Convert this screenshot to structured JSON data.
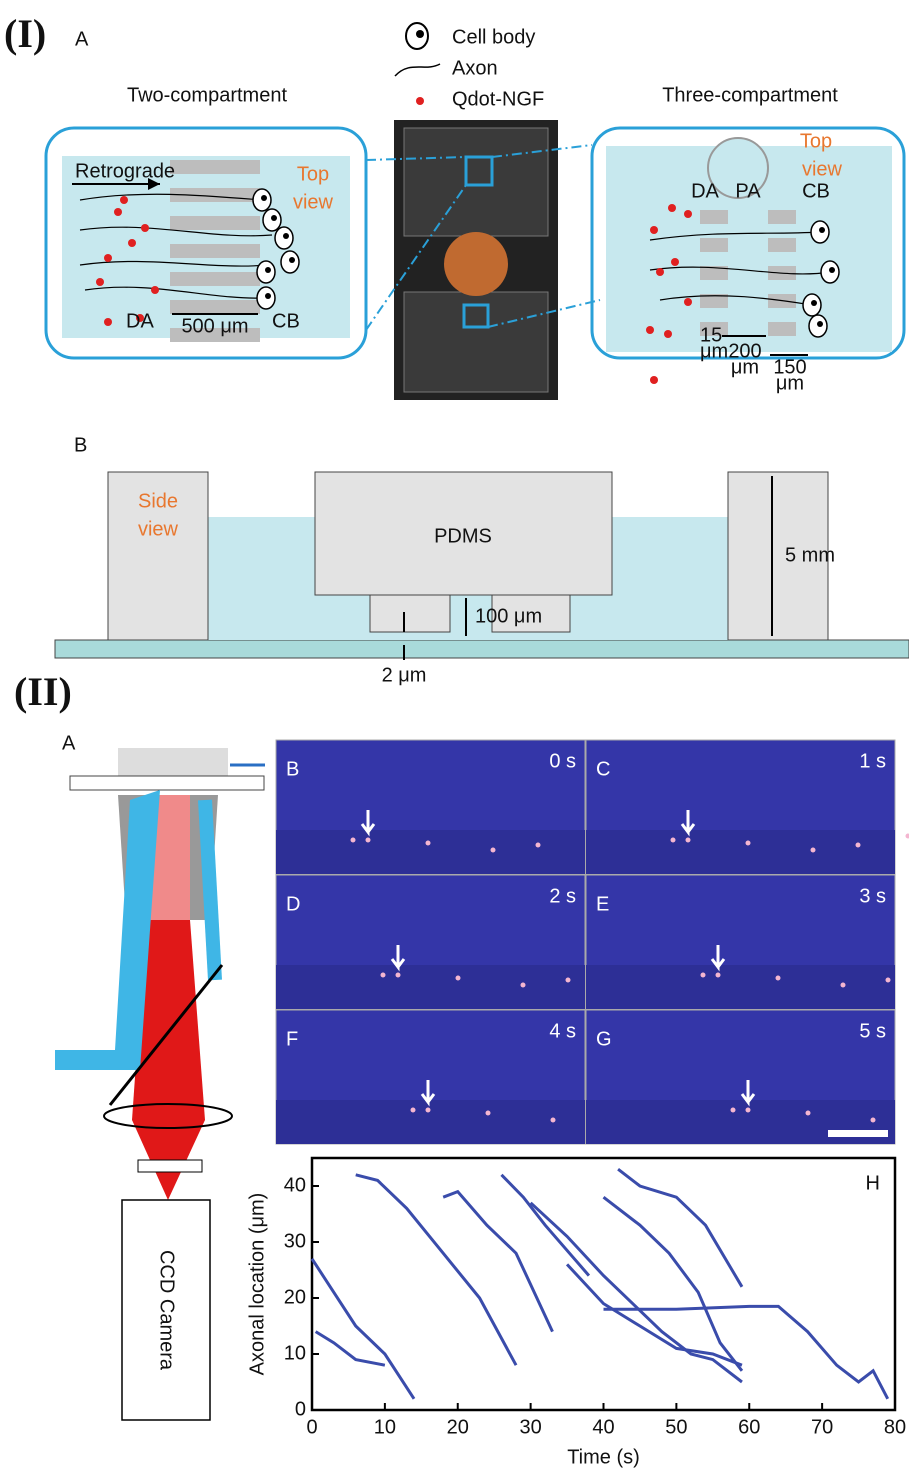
{
  "part1": {
    "label": "(I)",
    "panel_a": {
      "label": "A",
      "legend": [
        "Cell body",
        "Axon",
        "Qdot-NGF"
      ],
      "two_compartment": {
        "title": "Two-compartment",
        "direction": "Retrograde",
        "view": [
          "Top",
          "view"
        ],
        "left": "DA",
        "right": "CB",
        "width": "500 μm"
      },
      "three_compartment": {
        "title": "Three-compartment",
        "view": [
          "Top",
          "view"
        ],
        "left": "DA",
        "middle": "PA",
        "right": "CB",
        "gap": [
          "15",
          "μm"
        ],
        "spacing": [
          "200",
          "μm"
        ],
        "channel": [
          "150",
          "μm"
        ]
      }
    },
    "panel_b": {
      "label": "B",
      "view": [
        "Side",
        "view"
      ],
      "material": "PDMS",
      "height": "5 mm",
      "channel_height": "100 μm",
      "gap": "2 μm"
    }
  },
  "part2": {
    "label": "(II)",
    "panel_a": {
      "label": "A",
      "camera": "CCD Camera"
    },
    "frames": [
      {
        "letter": "B",
        "time": "0 s"
      },
      {
        "letter": "C",
        "time": "1 s"
      },
      {
        "letter": "D",
        "time": "2 s"
      },
      {
        "letter": "E",
        "time": "3 s"
      },
      {
        "letter": "F",
        "time": "4 s"
      },
      {
        "letter": "G",
        "time": "5 s"
      }
    ],
    "plot": {
      "label": "H",
      "xlabel": "Time (s)",
      "ylabel": "Axonal location (μm)",
      "color": "#3a4cab",
      "xlim": [
        0,
        80
      ],
      "ylim": [
        0,
        45
      ],
      "xticks": [
        0,
        10,
        20,
        30,
        40,
        50,
        60,
        70,
        80
      ],
      "yticks": [
        0,
        10,
        20,
        30,
        40
      ],
      "traces": [
        {
          "x": [
            0,
            3,
            6,
            10,
            14
          ],
          "y": [
            27,
            21,
            15,
            10,
            2
          ]
        },
        {
          "x": [
            0.5,
            3,
            6,
            10
          ],
          "y": [
            14,
            12,
            9,
            8
          ]
        },
        {
          "x": [
            6,
            9,
            13,
            18,
            23,
            28
          ],
          "y": [
            42,
            41,
            36,
            28,
            20,
            8
          ]
        },
        {
          "x": [
            18,
            20,
            24,
            28,
            33
          ],
          "y": [
            38,
            39,
            33,
            28,
            14
          ]
        },
        {
          "x": [
            26,
            29,
            32,
            36,
            38
          ],
          "y": [
            42,
            38,
            33,
            27,
            24
          ]
        },
        {
          "x": [
            30,
            35,
            40,
            44,
            48,
            52,
            55,
            59
          ],
          "y": [
            37,
            31,
            24,
            19,
            14,
            10,
            9,
            5
          ]
        },
        {
          "x": [
            40,
            45,
            49,
            53,
            56,
            59
          ],
          "y": [
            38,
            33,
            28,
            21,
            12,
            7
          ]
        },
        {
          "x": [
            42,
            45,
            50,
            54,
            59
          ],
          "y": [
            43,
            40,
            38,
            33,
            22
          ]
        },
        {
          "x": [
            40,
            50,
            60,
            64,
            68,
            72,
            75,
            77,
            79
          ],
          "y": [
            18,
            18,
            18.5,
            18.5,
            14,
            8,
            5,
            7,
            2
          ]
        },
        {
          "x": [
            35,
            40,
            45,
            50,
            55,
            59
          ],
          "y": [
            26,
            19,
            15,
            11,
            10,
            8
          ]
        }
      ]
    }
  }
}
